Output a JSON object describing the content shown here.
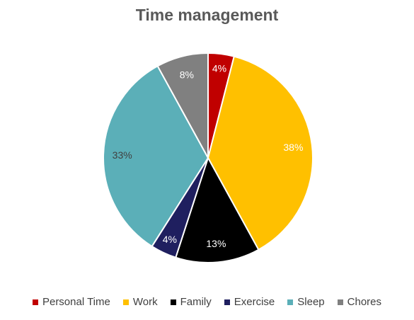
{
  "chart_data": {
    "type": "pie",
    "title": "Time management",
    "categories": [
      "Personal Time",
      "Work",
      "Family",
      "Exercise",
      "Sleep",
      "Chores"
    ],
    "values": [
      4,
      38,
      13,
      4,
      33,
      8
    ],
    "labels": [
      "4%",
      "38%",
      "13%",
      "4%",
      "33%",
      "8%"
    ],
    "colors": [
      "#C00000",
      "#FFC000",
      "#000000",
      "#1F1F5F",
      "#5BAFB8",
      "#808080"
    ],
    "label_colors": [
      "#ffffff",
      "#ffffff",
      "#ffffff",
      "#ffffff",
      "#404040",
      "#ffffff"
    ],
    "legend_position": "bottom"
  }
}
